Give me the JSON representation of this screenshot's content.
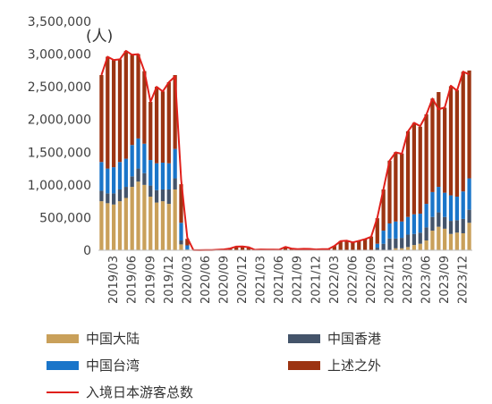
{
  "chart_data": {
    "type": "bar",
    "unit_label": "(人)",
    "ylim": [
      0,
      3500000
    ],
    "yticks": [
      "0",
      "500,000",
      "1,000,000",
      "1,500,000",
      "2,000,000",
      "2,500,000",
      "3,000,000",
      "3,500,000"
    ],
    "categories": [
      "2019/01",
      "2019/02",
      "2019/03",
      "2019/04",
      "2019/05",
      "2019/06",
      "2019/07",
      "2019/08",
      "2019/09",
      "2019/10",
      "2019/11",
      "2019/12",
      "2020/01",
      "2020/02",
      "2020/03",
      "2020/04",
      "2020/05",
      "2020/06",
      "2020/07",
      "2020/08",
      "2020/09",
      "2020/10",
      "2020/11",
      "2020/12",
      "2021/01",
      "2021/02",
      "2021/03",
      "2021/04",
      "2021/05",
      "2021/06",
      "2021/07",
      "2021/08",
      "2021/09",
      "2021/10",
      "2021/11",
      "2021/12",
      "2022/01",
      "2022/02",
      "2022/03",
      "2022/04",
      "2022/05",
      "2022/06",
      "2022/07",
      "2022/08",
      "2022/09",
      "2022/10",
      "2022/11",
      "2022/12",
      "2023/01",
      "2023/02",
      "2023/03",
      "2023/04",
      "2023/05",
      "2023/06",
      "2023/07",
      "2023/08",
      "2023/09",
      "2023/10",
      "2023/11",
      "2023/12",
      "2024/01"
    ],
    "xtick_labels": [
      "2019/03",
      "2019/06",
      "2019/09",
      "2019/12",
      "2020/03",
      "2020/06",
      "2020/09",
      "2020/12",
      "2021/03",
      "2021/06",
      "2021/09",
      "2021/12",
      "2022/03",
      "2022/06",
      "2022/09",
      "2022/12",
      "2023/03",
      "2023/06",
      "2023/09",
      "2023/12"
    ],
    "series": [
      {
        "name": "中国大陆",
        "color": "#c9a05a",
        "values": [
          750000,
          720000,
          700000,
          750000,
          800000,
          970000,
          1050000,
          1000000,
          820000,
          730000,
          750000,
          710000,
          930000,
          90000,
          10000,
          0,
          0,
          0,
          0,
          0,
          0,
          0,
          0,
          0,
          0,
          0,
          0,
          0,
          0,
          0,
          0,
          0,
          0,
          0,
          0,
          0,
          0,
          0,
          0,
          0,
          0,
          0,
          0,
          0,
          0,
          0,
          0,
          0,
          30000,
          30000,
          50000,
          80000,
          100000,
          150000,
          300000,
          360000,
          330000,
          250000,
          270000,
          260000,
          420000
        ]
      },
      {
        "name": "中国香港",
        "color": "#44546a",
        "values": [
          160000,
          150000,
          170000,
          180000,
          170000,
          160000,
          200000,
          180000,
          170000,
          190000,
          180000,
          220000,
          170000,
          60000,
          5000,
          0,
          0,
          0,
          0,
          0,
          0,
          0,
          0,
          0,
          0,
          0,
          0,
          0,
          0,
          0,
          0,
          0,
          0,
          0,
          0,
          0,
          0,
          0,
          0,
          0,
          0,
          0,
          0,
          0,
          0,
          40000,
          100000,
          180000,
          150000,
          160000,
          190000,
          170000,
          170000,
          200000,
          210000,
          220000,
          180000,
          200000,
          190000,
          220000,
          200000
        ]
      },
      {
        "name": "中国台湾",
        "color": "#1a75c9",
        "values": [
          440000,
          380000,
          400000,
          420000,
          430000,
          480000,
          460000,
          450000,
          390000,
          410000,
          410000,
          400000,
          450000,
          270000,
          60000,
          0,
          0,
          0,
          0,
          0,
          0,
          0,
          0,
          0,
          0,
          0,
          0,
          0,
          0,
          0,
          0,
          0,
          0,
          0,
          0,
          0,
          0,
          0,
          0,
          0,
          0,
          0,
          0,
          0,
          0,
          60000,
          200000,
          230000,
          260000,
          250000,
          270000,
          300000,
          290000,
          360000,
          380000,
          390000,
          370000,
          390000,
          360000,
          420000,
          480000
        ]
      },
      {
        "name": "上述之外",
        "color": "#9c3412",
        "values": [
          1330000,
          1710000,
          1640000,
          1570000,
          1650000,
          1380000,
          1290000,
          1110000,
          890000,
          1170000,
          1090000,
          1240000,
          1130000,
          590000,
          100000,
          3000,
          2000,
          2000,
          4000,
          8000,
          14000,
          28000,
          56000,
          59000,
          47000,
          8000,
          12000,
          11000,
          10000,
          9000,
          52000,
          26000,
          18000,
          22000,
          21000,
          15000,
          17000,
          17000,
          66000,
          140000,
          148000,
          120000,
          144000,
          170000,
          210000,
          390000,
          630000,
          960000,
          1060000,
          1040000,
          1310000,
          1400000,
          1330000,
          1370000,
          1430000,
          1450000,
          1300000,
          1670000,
          1630000,
          1830000,
          1650000
        ]
      }
    ],
    "line": {
      "name": "入境日本游客总数",
      "color": "#e0201b",
      "values": [
        2680000,
        2960000,
        2910000,
        2920000,
        3050000,
        2990000,
        3000000,
        2740000,
        2270000,
        2500000,
        2430000,
        2570000,
        2660000,
        1080000,
        194000,
        2900,
        1700,
        2600,
        3800,
        8700,
        13700,
        27400,
        56700,
        58700,
        46500,
        7400,
        12300,
        10900,
        10000,
        9200,
        51100,
        25900,
        17700,
        22100,
        20700,
        12100,
        17800,
        16700,
        66100,
        139500,
        147000,
        120400,
        144500,
        169900,
        206600,
        498600,
        934500,
        1370100,
        1497300,
        1475300,
        1817500,
        1949100,
        1899200,
        2073500,
        2320600,
        2156900,
        2184300,
        2516500,
        2441300,
        2733000,
        2688100
      ]
    }
  },
  "legend": [
    {
      "label": "中国大陆",
      "kind": "bar",
      "color": "#c9a05a"
    },
    {
      "label": "中国香港",
      "kind": "bar",
      "color": "#44546a"
    },
    {
      "label": "中国台湾",
      "kind": "bar",
      "color": "#1a75c9"
    },
    {
      "label": "上述之外",
      "kind": "bar",
      "color": "#9c3412"
    },
    {
      "label": "入境日本游客总数",
      "kind": "line",
      "color": "#e0201b"
    }
  ]
}
